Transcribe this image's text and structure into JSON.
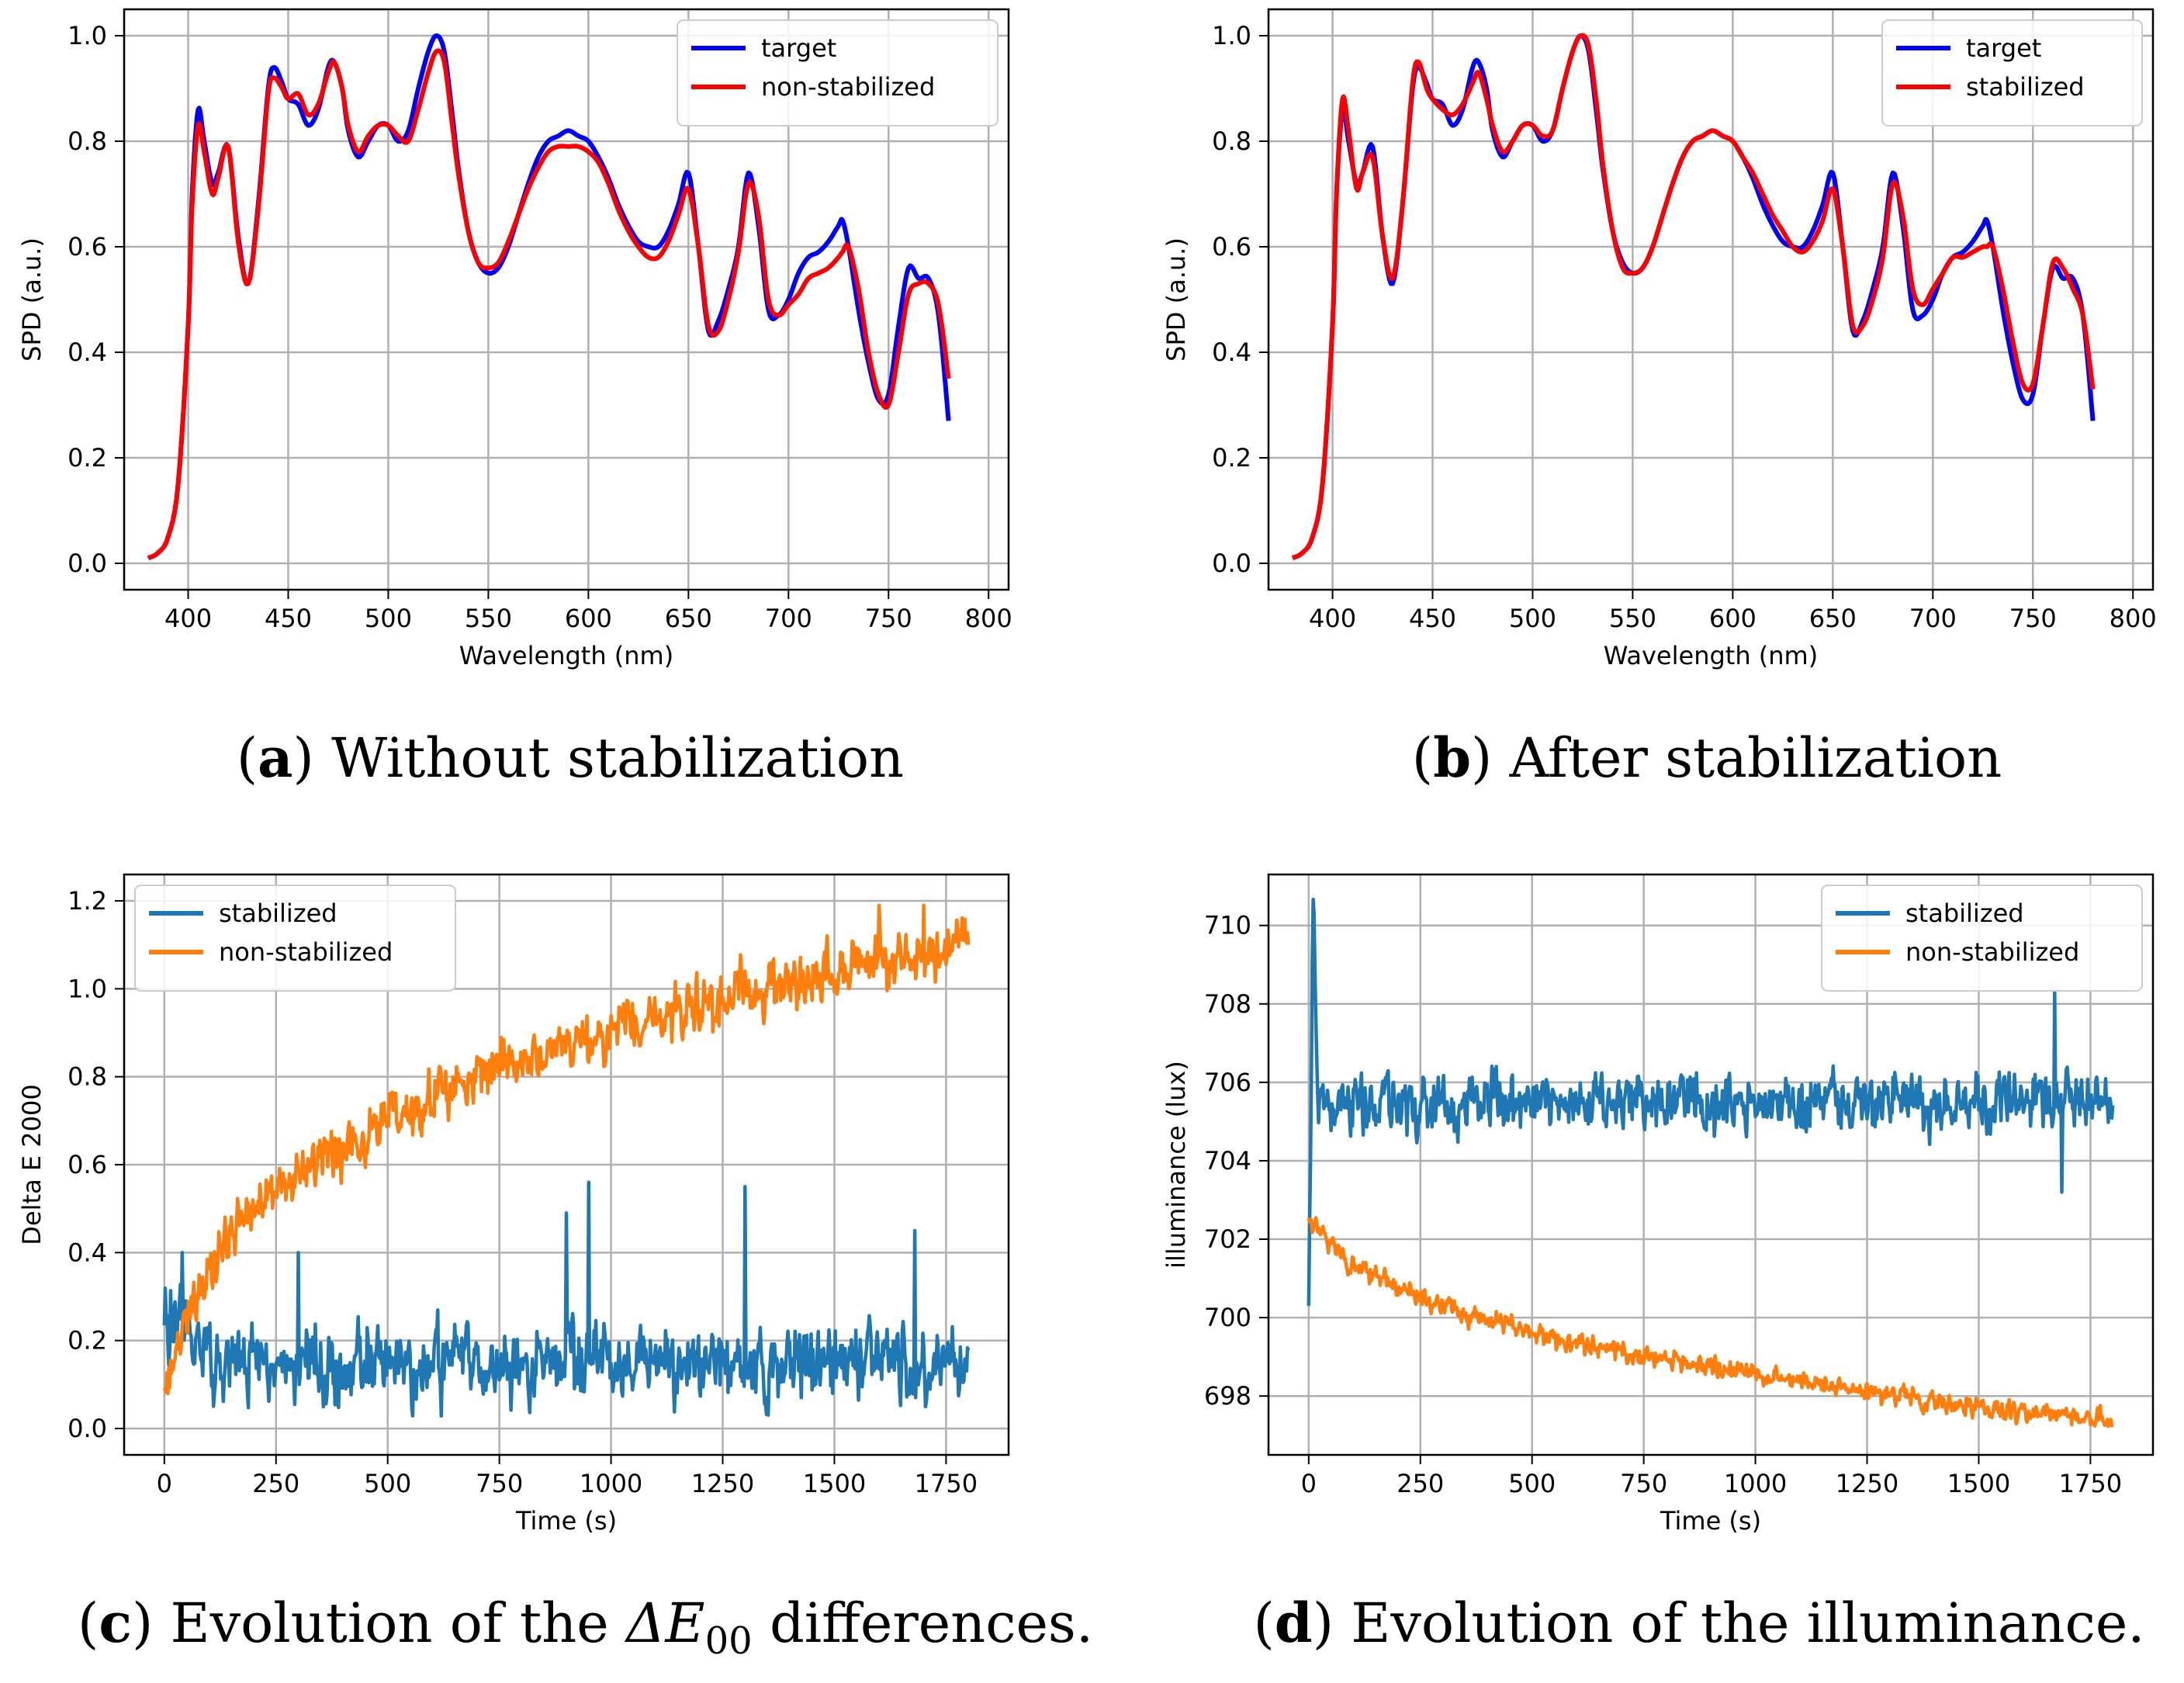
{
  "captions": [
    {
      "letter": "a",
      "text": ") Without stabilization"
    },
    {
      "letter": "b",
      "text": ") After stabilization"
    },
    {
      "letter": "c",
      "text_before": ") Evolution of the ",
      "delta": "ΔE",
      "sub": "00",
      "text_after": " differences."
    },
    {
      "letter": "d",
      "text": ") Evolution of the illuminance."
    }
  ],
  "colors": {
    "target": "#0000ff",
    "red": "#ff0000",
    "blue": "#1f77b4",
    "orange": "#ff7f0e",
    "grid": "#b0b0b0"
  },
  "chart_data": [
    {
      "id": "a",
      "type": "line",
      "xlabel": "Wavelength (nm)",
      "ylabel": "SPD (a.u.)",
      "xlim": [
        368,
        810
      ],
      "ylim": [
        -0.05,
        1.05
      ],
      "xticks": [
        400,
        450,
        500,
        550,
        600,
        650,
        700,
        750,
        800
      ],
      "yticks": [
        0.0,
        0.2,
        0.4,
        0.6,
        0.8,
        1.0
      ],
      "ytick_labels": [
        "0.0",
        "0.2",
        "0.4",
        "0.6",
        "0.8",
        "1.0"
      ],
      "grid": true,
      "legend": "top-right",
      "series": [
        {
          "name": "target",
          "color": "#0000ff",
          "x": [
            380,
            385,
            390,
            395,
            400,
            402,
            405,
            408,
            412,
            415,
            420,
            425,
            430,
            435,
            440,
            443,
            447,
            450,
            455,
            460,
            465,
            470,
            473,
            477,
            480,
            485,
            490,
            495,
            500,
            505,
            510,
            515,
            520,
            524,
            528,
            532,
            535,
            540,
            545,
            550,
            555,
            560,
            565,
            570,
            575,
            580,
            585,
            590,
            595,
            600,
            605,
            610,
            615,
            620,
            625,
            630,
            635,
            640,
            645,
            650,
            655,
            660,
            665,
            670,
            675,
            680,
            685,
            690,
            695,
            700,
            705,
            710,
            715,
            720,
            725,
            727,
            730,
            735,
            740,
            745,
            750,
            755,
            760,
            765,
            770,
            775,
            780
          ],
          "y": [
            0.01,
            0.02,
            0.05,
            0.15,
            0.45,
            0.7,
            0.86,
            0.8,
            0.72,
            0.74,
            0.79,
            0.62,
            0.53,
            0.68,
            0.9,
            0.94,
            0.91,
            0.88,
            0.87,
            0.83,
            0.86,
            0.94,
            0.95,
            0.9,
            0.82,
            0.77,
            0.8,
            0.83,
            0.83,
            0.8,
            0.82,
            0.9,
            0.97,
            1.0,
            0.97,
            0.85,
            0.75,
            0.63,
            0.57,
            0.55,
            0.56,
            0.6,
            0.66,
            0.72,
            0.77,
            0.8,
            0.81,
            0.82,
            0.81,
            0.8,
            0.77,
            0.73,
            0.68,
            0.64,
            0.61,
            0.6,
            0.6,
            0.63,
            0.68,
            0.74,
            0.6,
            0.44,
            0.46,
            0.52,
            0.6,
            0.74,
            0.64,
            0.48,
            0.47,
            0.5,
            0.55,
            0.58,
            0.59,
            0.61,
            0.64,
            0.65,
            0.6,
            0.48,
            0.38,
            0.31,
            0.32,
            0.45,
            0.56,
            0.54,
            0.54,
            0.47,
            0.27
          ]
        },
        {
          "name": "non-stabilized",
          "color": "#ff0000",
          "x": [
            380,
            385,
            390,
            395,
            400,
            402,
            405,
            408,
            412,
            415,
            420,
            425,
            430,
            435,
            440,
            443,
            447,
            450,
            455,
            460,
            465,
            470,
            473,
            477,
            480,
            485,
            490,
            495,
            500,
            505,
            510,
            515,
            520,
            524,
            528,
            532,
            535,
            540,
            545,
            550,
            555,
            560,
            565,
            570,
            575,
            580,
            585,
            590,
            595,
            600,
            605,
            610,
            615,
            620,
            625,
            630,
            635,
            640,
            645,
            650,
            655,
            660,
            665,
            670,
            675,
            680,
            685,
            690,
            695,
            700,
            705,
            710,
            715,
            720,
            725,
            727,
            730,
            735,
            740,
            745,
            750,
            755,
            760,
            765,
            770,
            775,
            780
          ],
          "y": [
            0.01,
            0.02,
            0.05,
            0.15,
            0.45,
            0.68,
            0.83,
            0.78,
            0.7,
            0.73,
            0.79,
            0.61,
            0.53,
            0.67,
            0.89,
            0.92,
            0.9,
            0.88,
            0.89,
            0.85,
            0.87,
            0.93,
            0.95,
            0.9,
            0.83,
            0.78,
            0.81,
            0.83,
            0.83,
            0.81,
            0.8,
            0.86,
            0.93,
            0.97,
            0.95,
            0.83,
            0.74,
            0.63,
            0.57,
            0.56,
            0.57,
            0.61,
            0.66,
            0.71,
            0.75,
            0.78,
            0.79,
            0.79,
            0.79,
            0.78,
            0.76,
            0.72,
            0.67,
            0.63,
            0.6,
            0.58,
            0.58,
            0.61,
            0.66,
            0.71,
            0.6,
            0.45,
            0.44,
            0.5,
            0.59,
            0.72,
            0.66,
            0.5,
            0.47,
            0.49,
            0.51,
            0.54,
            0.55,
            0.56,
            0.58,
            0.59,
            0.6,
            0.52,
            0.4,
            0.32,
            0.3,
            0.4,
            0.51,
            0.53,
            0.53,
            0.49,
            0.35
          ]
        }
      ]
    },
    {
      "id": "b",
      "type": "line",
      "xlabel": "Wavelength (nm)",
      "ylabel": "SPD (a.u.)",
      "xlim": [
        368,
        810
      ],
      "ylim": [
        -0.05,
        1.05
      ],
      "xticks": [
        400,
        450,
        500,
        550,
        600,
        650,
        700,
        750,
        800
      ],
      "yticks": [
        0.0,
        0.2,
        0.4,
        0.6,
        0.8,
        1.0
      ],
      "ytick_labels": [
        "0.0",
        "0.2",
        "0.4",
        "0.6",
        "0.8",
        "1.0"
      ],
      "grid": true,
      "legend": "top-right",
      "series": [
        {
          "name": "target",
          "color": "#0000ff",
          "x": [
            380,
            385,
            390,
            395,
            400,
            402,
            405,
            408,
            412,
            415,
            420,
            425,
            430,
            435,
            440,
            443,
            447,
            450,
            455,
            460,
            465,
            470,
            473,
            477,
            480,
            485,
            490,
            495,
            500,
            505,
            510,
            515,
            520,
            524,
            528,
            532,
            535,
            540,
            545,
            550,
            555,
            560,
            565,
            570,
            575,
            580,
            585,
            590,
            595,
            600,
            605,
            610,
            615,
            620,
            625,
            630,
            635,
            640,
            645,
            650,
            655,
            660,
            665,
            670,
            675,
            680,
            685,
            690,
            695,
            700,
            705,
            710,
            715,
            720,
            725,
            727,
            730,
            735,
            740,
            745,
            750,
            755,
            760,
            765,
            770,
            775,
            780
          ],
          "y": [
            0.01,
            0.02,
            0.05,
            0.15,
            0.45,
            0.7,
            0.86,
            0.8,
            0.72,
            0.74,
            0.79,
            0.62,
            0.53,
            0.68,
            0.9,
            0.94,
            0.91,
            0.88,
            0.87,
            0.83,
            0.86,
            0.94,
            0.95,
            0.9,
            0.82,
            0.77,
            0.8,
            0.83,
            0.83,
            0.8,
            0.82,
            0.9,
            0.97,
            1.0,
            0.97,
            0.85,
            0.75,
            0.63,
            0.57,
            0.55,
            0.56,
            0.6,
            0.66,
            0.72,
            0.77,
            0.8,
            0.81,
            0.82,
            0.81,
            0.8,
            0.77,
            0.73,
            0.68,
            0.64,
            0.61,
            0.6,
            0.6,
            0.63,
            0.68,
            0.74,
            0.6,
            0.44,
            0.46,
            0.52,
            0.6,
            0.74,
            0.64,
            0.48,
            0.47,
            0.5,
            0.55,
            0.58,
            0.59,
            0.61,
            0.64,
            0.65,
            0.6,
            0.48,
            0.38,
            0.31,
            0.32,
            0.45,
            0.56,
            0.54,
            0.54,
            0.47,
            0.27
          ]
        },
        {
          "name": "stabilized",
          "color": "#ff0000",
          "x": [
            380,
            385,
            390,
            395,
            400,
            402,
            405,
            408,
            412,
            415,
            420,
            425,
            430,
            435,
            440,
            443,
            447,
            450,
            455,
            460,
            465,
            470,
            473,
            477,
            480,
            485,
            490,
            495,
            500,
            505,
            510,
            515,
            520,
            524,
            528,
            532,
            535,
            540,
            545,
            550,
            555,
            560,
            565,
            570,
            575,
            580,
            585,
            590,
            595,
            600,
            605,
            610,
            615,
            620,
            625,
            630,
            635,
            640,
            645,
            650,
            655,
            660,
            665,
            670,
            675,
            680,
            685,
            690,
            695,
            700,
            705,
            710,
            715,
            720,
            725,
            727,
            730,
            735,
            740,
            745,
            750,
            755,
            760,
            765,
            770,
            775,
            780
          ],
          "y": [
            0.01,
            0.02,
            0.05,
            0.15,
            0.45,
            0.7,
            0.88,
            0.82,
            0.71,
            0.74,
            0.77,
            0.62,
            0.54,
            0.68,
            0.91,
            0.95,
            0.9,
            0.88,
            0.86,
            0.85,
            0.87,
            0.91,
            0.93,
            0.88,
            0.83,
            0.78,
            0.8,
            0.83,
            0.83,
            0.81,
            0.82,
            0.9,
            0.97,
            1.0,
            0.98,
            0.87,
            0.76,
            0.63,
            0.56,
            0.55,
            0.56,
            0.6,
            0.66,
            0.72,
            0.77,
            0.8,
            0.81,
            0.82,
            0.81,
            0.8,
            0.77,
            0.74,
            0.7,
            0.66,
            0.63,
            0.6,
            0.59,
            0.61,
            0.65,
            0.71,
            0.6,
            0.45,
            0.45,
            0.5,
            0.58,
            0.72,
            0.66,
            0.52,
            0.49,
            0.52,
            0.55,
            0.58,
            0.58,
            0.59,
            0.6,
            0.6,
            0.6,
            0.52,
            0.42,
            0.34,
            0.34,
            0.45,
            0.57,
            0.56,
            0.52,
            0.47,
            0.33
          ]
        }
      ]
    },
    {
      "id": "c",
      "type": "line",
      "xlabel": "Time (s)",
      "ylabel": "Delta E 2000",
      "xlim": [
        -90,
        1890
      ],
      "ylim": [
        -0.06,
        1.26
      ],
      "xticks": [
        0,
        250,
        500,
        750,
        1000,
        1250,
        1500,
        1750
      ],
      "yticks": [
        0.0,
        0.2,
        0.4,
        0.6,
        0.8,
        1.0,
        1.2
      ],
      "ytick_labels": [
        "0.0",
        "0.2",
        "0.4",
        "0.6",
        "0.8",
        "1.0",
        "1.2"
      ],
      "grid": true,
      "legend": "top-left",
      "series": [
        {
          "name": "stabilized",
          "color": "#1f77b4",
          "t_range": [
            0,
            1800
          ],
          "trend_t": [
            0,
            20,
            100,
            1800
          ],
          "trend_y": [
            0.26,
            0.26,
            0.15,
            0.15
          ],
          "noise": 0.14,
          "spikes_t": [
            40,
            300,
            900,
            950,
            1300,
            1680
          ],
          "spikes_y": [
            0.4,
            0.4,
            0.49,
            0.56,
            0.55,
            0.45
          ]
        },
        {
          "name": "non-stabilized",
          "color": "#ff7f0e",
          "t_range": [
            0,
            1800
          ],
          "trend_t": [
            0,
            100,
            250,
            500,
            750,
            1000,
            1250,
            1500,
            1800
          ],
          "trend_y": [
            0.12,
            0.38,
            0.55,
            0.7,
            0.82,
            0.9,
            0.97,
            1.04,
            1.1
          ],
          "noise": 0.1,
          "spikes_t": [
            1600,
            1700
          ],
          "spikes_y": [
            1.19,
            1.19
          ]
        }
      ]
    },
    {
      "id": "d",
      "type": "line",
      "xlabel": "Time (s)",
      "ylabel": "illuminance (lux)",
      "xlim": [
        -90,
        1890
      ],
      "ylim": [
        696.5,
        711.3
      ],
      "xticks": [
        0,
        250,
        500,
        750,
        1000,
        1250,
        1500,
        1750
      ],
      "yticks": [
        698,
        700,
        702,
        704,
        706,
        708,
        710
      ],
      "ytick_labels": [
        "698",
        "700",
        "702",
        "704",
        "706",
        "708",
        "710"
      ],
      "grid": true,
      "legend": "top-right",
      "series": [
        {
          "name": "stabilized",
          "color": "#1f77b4",
          "t_range": [
            0,
            1800
          ],
          "trend_t": [
            0,
            5,
            10,
            20,
            40,
            1800
          ],
          "trend_y": [
            700.0,
            704.0,
            710.7,
            705.5,
            705.5,
            705.5
          ],
          "noise": 1.2,
          "spikes_t": [
            1670,
            1685
          ],
          "spikes_y": [
            708.3,
            703.2
          ]
        },
        {
          "name": "non-stabilized",
          "color": "#ff7f0e",
          "t_range": [
            0,
            1800
          ],
          "trend_t": [
            0,
            100,
            250,
            500,
            750,
            1000,
            1250,
            1500,
            1800
          ],
          "trend_y": [
            702.5,
            701.3,
            700.5,
            699.6,
            699.0,
            698.6,
            698.1,
            697.7,
            697.4
          ],
          "noise": 0.45,
          "spikes_t": [],
          "spikes_y": []
        }
      ]
    }
  ]
}
